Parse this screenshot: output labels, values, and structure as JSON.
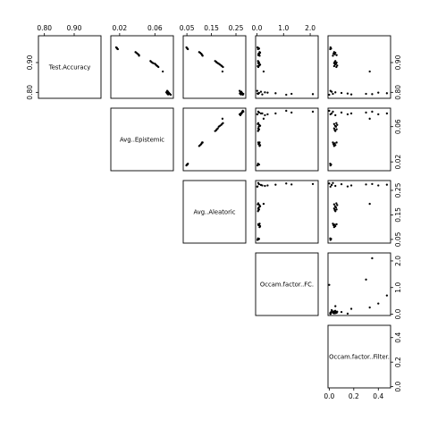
{
  "chart_data": {
    "type": "scatter",
    "layout": "upper-triangle scatterplot matrix",
    "variables": [
      {
        "name": "Test.Accuracy",
        "range": [
          0.78,
          0.99
        ],
        "ticks": [
          0.8,
          0.9
        ],
        "tick_labels": [
          "0.80",
          "0.90"
        ]
      },
      {
        "name": "Avg..Epistemic",
        "range": [
          0.01,
          0.081
        ],
        "ticks": [
          0.02,
          0.06
        ],
        "tick_labels": [
          "0.02",
          "0.06"
        ]
      },
      {
        "name": "Avg..Aleatoric",
        "range": [
          0.035,
          0.29
        ],
        "ticks": [
          0.05,
          0.15,
          0.25
        ],
        "tick_labels": [
          "0.05",
          "0.15",
          "0.25"
        ]
      },
      {
        "name": "Occam.factor..FC.",
        "range": [
          -0.05,
          2.3
        ],
        "ticks": [
          0,
          1,
          2
        ],
        "tick_labels": [
          "0.0",
          "1.0",
          "2.0"
        ]
      },
      {
        "name": "Occam.factor..Filter.",
        "range": [
          -0.01,
          0.5
        ],
        "ticks": [
          0,
          0.2,
          0.4
        ],
        "tick_labels": [
          "0.0",
          "0.2",
          "0.4"
        ]
      }
    ],
    "points": [
      [
        0.951,
        0.016,
        0.048,
        0.02,
        0.01
      ],
      [
        0.949,
        0.017,
        0.05,
        0.05,
        0.012
      ],
      [
        0.947,
        0.017,
        0.052,
        0.08,
        0.015
      ],
      [
        0.945,
        0.018,
        0.054,
        0.04,
        0.008
      ],
      [
        0.935,
        0.038,
        0.1,
        0.1,
        0.04
      ],
      [
        0.933,
        0.039,
        0.104,
        0.12,
        0.05
      ],
      [
        0.93,
        0.04,
        0.108,
        0.06,
        0.035
      ],
      [
        0.928,
        0.041,
        0.11,
        0.08,
        0.045
      ],
      [
        0.925,
        0.042,
        0.112,
        0.05,
        0.06
      ],
      [
        0.923,
        0.042,
        0.114,
        0.1,
        0.03
      ],
      [
        0.905,
        0.055,
        0.165,
        0.04,
        0.05
      ],
      [
        0.902,
        0.056,
        0.17,
        0.06,
        0.045
      ],
      [
        0.9,
        0.057,
        0.172,
        0.08,
        0.06
      ],
      [
        0.898,
        0.058,
        0.176,
        0.05,
        0.04
      ],
      [
        0.896,
        0.06,
        0.18,
        0.07,
        0.055
      ],
      [
        0.893,
        0.061,
        0.185,
        0.12,
        0.048
      ],
      [
        0.89,
        0.062,
        0.19,
        0.09,
        0.065
      ],
      [
        0.888,
        0.063,
        0.193,
        0.03,
        0.04
      ],
      [
        0.885,
        0.064,
        0.197,
        0.05,
        0.058
      ],
      [
        0.805,
        0.074,
        0.265,
        0.01,
        0.01
      ],
      [
        0.802,
        0.075,
        0.272,
        0.15,
        0.02
      ],
      [
        0.8,
        0.073,
        0.268,
        0.3,
        0.05
      ],
      [
        0.798,
        0.076,
        0.275,
        0.08,
        0.1
      ],
      [
        0.796,
        0.074,
        0.266,
        0.02,
        0.15
      ],
      [
        0.795,
        0.077,
        0.28,
        0.05,
        0.03
      ],
      [
        0.793,
        0.075,
        0.27,
        0.2,
        0.18
      ],
      [
        0.792,
        0.078,
        0.278,
        1.1,
        0.0
      ],
      [
        0.795,
        0.076,
        0.274,
        1.3,
        0.3
      ],
      [
        0.794,
        0.077,
        0.276,
        2.1,
        0.35
      ],
      [
        0.797,
        0.075,
        0.273,
        0.7,
        0.47
      ],
      [
        0.799,
        0.074,
        0.27,
        0.4,
        0.4
      ],
      [
        0.87,
        0.069,
        0.195,
        0.25,
        0.33
      ]
    ]
  }
}
